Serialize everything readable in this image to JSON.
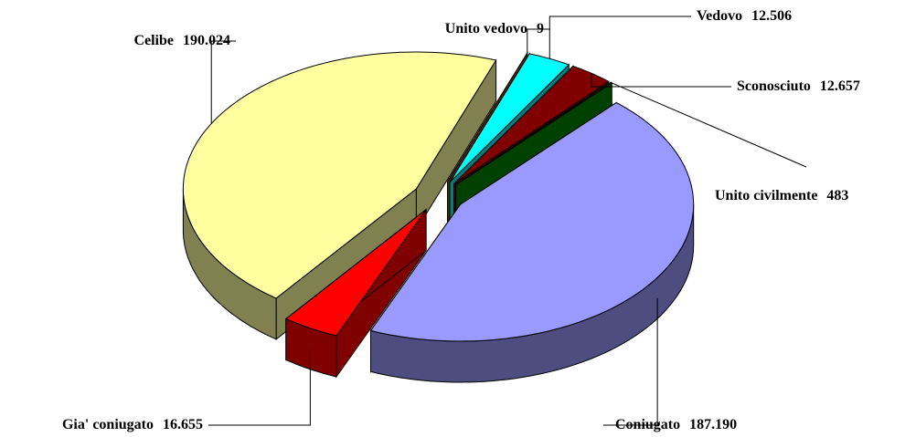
{
  "chart_data": {
    "type": "pie",
    "categories": [
      "Unito vedovo",
      "Vedovo",
      "Sconosciuto",
      "Unito civilmente",
      "Coniugato",
      "Gia' coniugato",
      "Celibe"
    ],
    "values": [
      9,
      12506,
      12657,
      483,
      187190,
      16655,
      190024
    ],
    "value_labels": [
      "9",
      "12.506",
      "12.657",
      "483",
      "187.190",
      "16.655",
      "190.024"
    ],
    "colors": [
      "#996600",
      "#00ffff",
      "#800000",
      "#008000",
      "#9999ff",
      "#ff0000",
      "#ffffa0"
    ]
  }
}
